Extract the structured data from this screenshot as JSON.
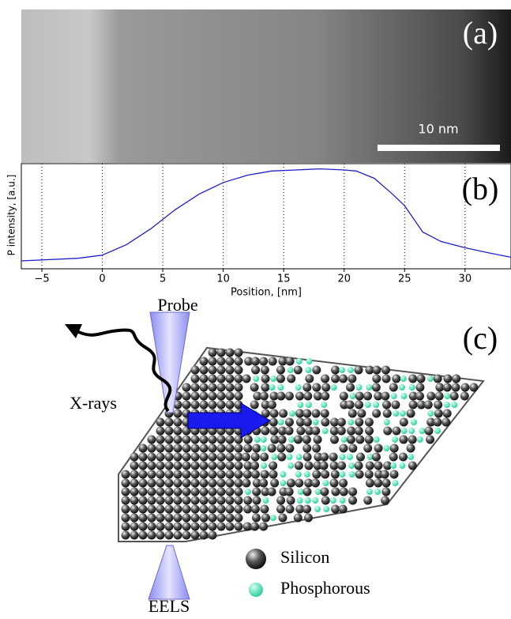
{
  "image_panel": {
    "label": "(a)",
    "scale_bar": "10 nm"
  },
  "chart_data": {
    "type": "line",
    "label": "(b)",
    "x_label": "Position, [nm]",
    "y_label": "P intensity, [a.u.]",
    "x": [
      -6.7,
      -2,
      0,
      2,
      4,
      6,
      8,
      10,
      12,
      14,
      16,
      18,
      20,
      21,
      22.5,
      24,
      25,
      26.5,
      28,
      30,
      32,
      33.8
    ],
    "values": [
      0.075,
      0.1,
      0.13,
      0.23,
      0.38,
      0.56,
      0.71,
      0.82,
      0.89,
      0.93,
      0.94,
      0.95,
      0.94,
      0.93,
      0.86,
      0.71,
      0.6,
      0.35,
      0.26,
      0.2,
      0.15,
      0.11
    ],
    "color": "#1f1fcc",
    "xlim": [
      -6.7,
      33.8
    ],
    "ylim": [
      0,
      1
    ],
    "xticks": [
      {
        "value": -5,
        "label": "−5"
      },
      0,
      5,
      10,
      15,
      20,
      25,
      30
    ],
    "grid": true
  },
  "diagram": {
    "label": "(c)",
    "probe": "Probe",
    "xrays": "X-rays",
    "eels": "EELS",
    "legend": [
      "Silicon",
      "Phosphorous"
    ]
  }
}
